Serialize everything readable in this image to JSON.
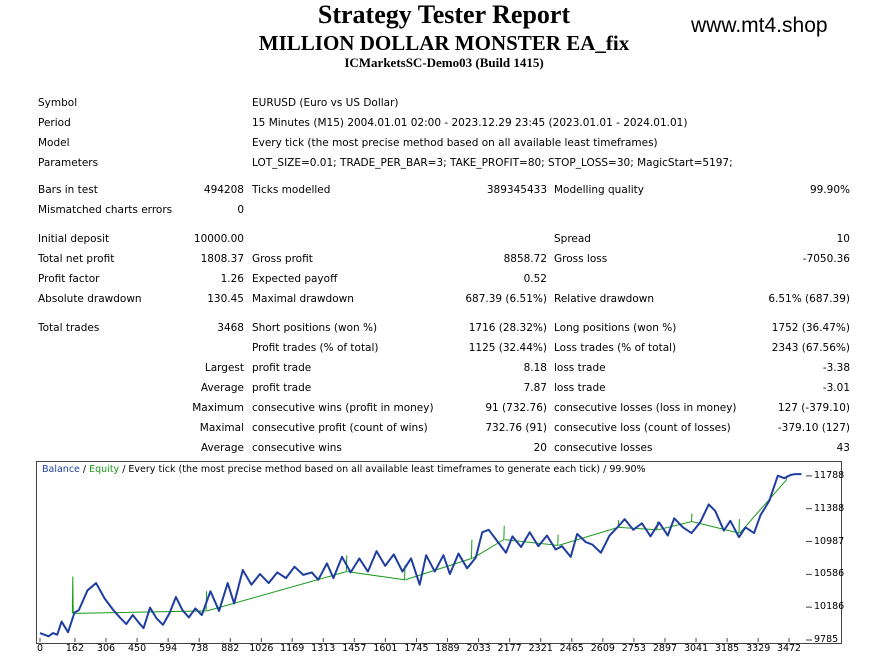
{
  "header": {
    "title": "Strategy Tester Report",
    "expert_name": "MILLION DOLLAR MONSTER EA_fix",
    "server_build": "ICMarketsSC-Demo03 (Build 1415)",
    "site": "www.mt4.shop"
  },
  "info": {
    "symbol_label": "Symbol",
    "symbol_value": "EURUSD (Euro vs US Dollar)",
    "period_label": "Period",
    "period_value": "15 Minutes (M15) 2004.01.01 02:00 - 2023.12.29 23:45 (2023.01.01 - 2024.01.01)",
    "model_label": "Model",
    "model_value": "Every tick (the most precise method based on all available least timeframes)",
    "parameters_label": "Parameters",
    "parameters_value": "LOT_SIZE=0.01; TRADE_PER_BAR=3; TAKE_PROFIT=80; STOP_LOSS=30; MagicStart=5197;"
  },
  "bars": {
    "bars_label": "Bars in test",
    "bars_value": "494208",
    "ticks_label": "Ticks modelled",
    "ticks_value": "389345433",
    "quality_label": "Modelling quality",
    "quality_value": "99.90%",
    "mismatched_label": "Mismatched charts errors",
    "mismatched_value": "0"
  },
  "results": {
    "initial_deposit_label": "Initial deposit",
    "initial_deposit_value": "10000.00",
    "spread_label": "Spread",
    "spread_value": "10",
    "net_profit_label": "Total net profit",
    "net_profit_value": "1808.37",
    "gross_profit_label": "Gross profit",
    "gross_profit_value": "8858.72",
    "gross_loss_label": "Gross loss",
    "gross_loss_value": "-7050.36",
    "profit_factor_label": "Profit factor",
    "profit_factor_value": "1.26",
    "expected_payoff_label": "Expected payoff",
    "expected_payoff_value": "0.52",
    "abs_drawdown_label": "Absolute drawdown",
    "abs_drawdown_value": "130.45",
    "max_drawdown_label": "Maximal drawdown",
    "max_drawdown_value": "687.39 (6.51%)",
    "rel_drawdown_label": "Relative drawdown",
    "rel_drawdown_value": "6.51% (687.39)"
  },
  "trades": {
    "total_trades_label": "Total trades",
    "total_trades_value": "3468",
    "short_label": "Short positions (won %)",
    "short_value": "1716 (28.32%)",
    "long_label": "Long positions (won %)",
    "long_value": "1752 (36.47%)",
    "profit_trades_label": "Profit trades (% of total)",
    "profit_trades_value": "1125 (32.44%)",
    "loss_trades_label": "Loss trades (% of total)",
    "loss_trades_value": "2343 (67.56%)",
    "largest_label": "Largest",
    "largest_profit_label": "profit trade",
    "largest_profit_value": "8.18",
    "largest_loss_label": "loss trade",
    "largest_loss_value": "-3.38",
    "average_label": "Average",
    "average_profit_label": "profit trade",
    "average_profit_value": "7.87",
    "average_loss_label": "loss trade",
    "average_loss_value": "-3.01",
    "maximum_label": "Maximum",
    "max_cons_wins_label": "consecutive wins (profit in money)",
    "max_cons_wins_value": "91 (732.76)",
    "max_cons_losses_label": "consecutive losses (loss in money)",
    "max_cons_losses_value": "127 (-379.10)",
    "maximal_label": "Maximal",
    "maximal_cons_profit_label": "consecutive profit (count of wins)",
    "maximal_cons_profit_value": "732.76 (91)",
    "maximal_cons_loss_label": "consecutive loss (count of losses)",
    "maximal_cons_loss_value": "-379.10 (127)",
    "avg_cons_label": "Average",
    "avg_cons_wins_label": "consecutive wins",
    "avg_cons_wins_value": "20",
    "avg_cons_losses_label": "consecutive losses",
    "avg_cons_losses_value": "43"
  },
  "legend": {
    "balance": "Balance",
    "sep1": " / ",
    "equity": "Equity",
    "rest": " / Every tick (the most precise method based on all available least timeframes to generate each tick) / 99.90%"
  },
  "colors": {
    "balance": "#1f3ea0",
    "equity": "#1a9a1a",
    "border": "#444444"
  },
  "chart_data": {
    "type": "line",
    "title": "",
    "xlabel": "",
    "ylabel": "",
    "xlim": [
      0,
      3560
    ],
    "ylim": [
      9785,
      11860
    ],
    "x_ticks": [
      0,
      162,
      306,
      450,
      594,
      738,
      882,
      1026,
      1169,
      1313,
      1457,
      1601,
      1745,
      1889,
      2033,
      2177,
      2321,
      2465,
      2609,
      2753,
      2897,
      3041,
      3185,
      3329,
      3472
    ],
    "y_ticks": [
      9785,
      10186,
      10586,
      10987,
      11388,
      11788
    ],
    "series": [
      {
        "name": "Balance",
        "x": [
          0,
          40,
          60,
          80,
          100,
          130,
          160,
          180,
          220,
          260,
          300,
          340,
          370,
          400,
          430,
          460,
          480,
          510,
          540,
          570,
          600,
          630,
          660,
          690,
          720,
          750,
          790,
          830,
          870,
          900,
          940,
          980,
          1020,
          1060,
          1100,
          1140,
          1180,
          1220,
          1260,
          1290,
          1330,
          1360,
          1400,
          1440,
          1480,
          1520,
          1560,
          1600,
          1640,
          1680,
          1720,
          1760,
          1790,
          1830,
          1870,
          1900,
          1940,
          1980,
          2020,
          2050,
          2080,
          2120,
          2160,
          2190,
          2230,
          2270,
          2310,
          2350,
          2390,
          2420,
          2460,
          2490,
          2530,
          2560,
          2600,
          2640,
          2680,
          2710,
          2750,
          2790,
          2830,
          2870,
          2910,
          2940,
          2980,
          3020,
          3060,
          3100,
          3130,
          3170,
          3200,
          3240,
          3270,
          3310,
          3340,
          3380,
          3420,
          3450,
          3480,
          3500,
          3530
        ],
        "y": [
          9870,
          9830,
          9870,
          9850,
          10010,
          9880,
          10120,
          10150,
          10390,
          10480,
          10290,
          10150,
          10060,
          9980,
          10090,
          9990,
          9930,
          10180,
          10050,
          9970,
          10110,
          10310,
          10150,
          10060,
          10170,
          10090,
          10380,
          10140,
          10480,
          10230,
          10640,
          10460,
          10590,
          10480,
          10610,
          10540,
          10680,
          10580,
          10610,
          10520,
          10720,
          10540,
          10800,
          10610,
          10780,
          10620,
          10870,
          10690,
          10830,
          10620,
          10780,
          10460,
          10820,
          10620,
          10820,
          10590,
          10840,
          10660,
          10790,
          11100,
          11130,
          10990,
          10850,
          11050,
          10920,
          11100,
          10930,
          11060,
          10890,
          10930,
          10800,
          11080,
          10980,
          10950,
          10850,
          11060,
          11170,
          11260,
          11130,
          11210,
          11050,
          11220,
          11060,
          11270,
          11160,
          11090,
          11220,
          11440,
          11360,
          11120,
          11240,
          11040,
          11160,
          11090,
          11310,
          11480,
          11790,
          11760,
          11800,
          11810,
          11810
        ]
      },
      {
        "name": "Equity",
        "x": [
          150,
          152,
          154,
          156,
          770,
          772,
          774,
          1420,
          1422,
          1424,
          1690,
          1692,
          1694,
          2000,
          2002,
          2004,
          2150,
          2152,
          2154,
          2400,
          2402,
          2404,
          2680,
          2682,
          2684,
          2860,
          2862,
          2864,
          3020,
          3022,
          3024,
          3240,
          3242,
          3244,
          3460,
          3462,
          3464
        ],
        "y": [
          10110,
          10560,
          10110,
          10110,
          10140,
          10380,
          10140,
          10620,
          10820,
          10620,
          10520,
          10700,
          10520,
          10780,
          11010,
          10780,
          11010,
          11180,
          11010,
          10940,
          11070,
          10940,
          11160,
          11250,
          11160,
          11130,
          11230,
          11130,
          11230,
          11330,
          11230,
          11090,
          11260,
          11090,
          11740,
          11790,
          11740
        ]
      }
    ]
  }
}
